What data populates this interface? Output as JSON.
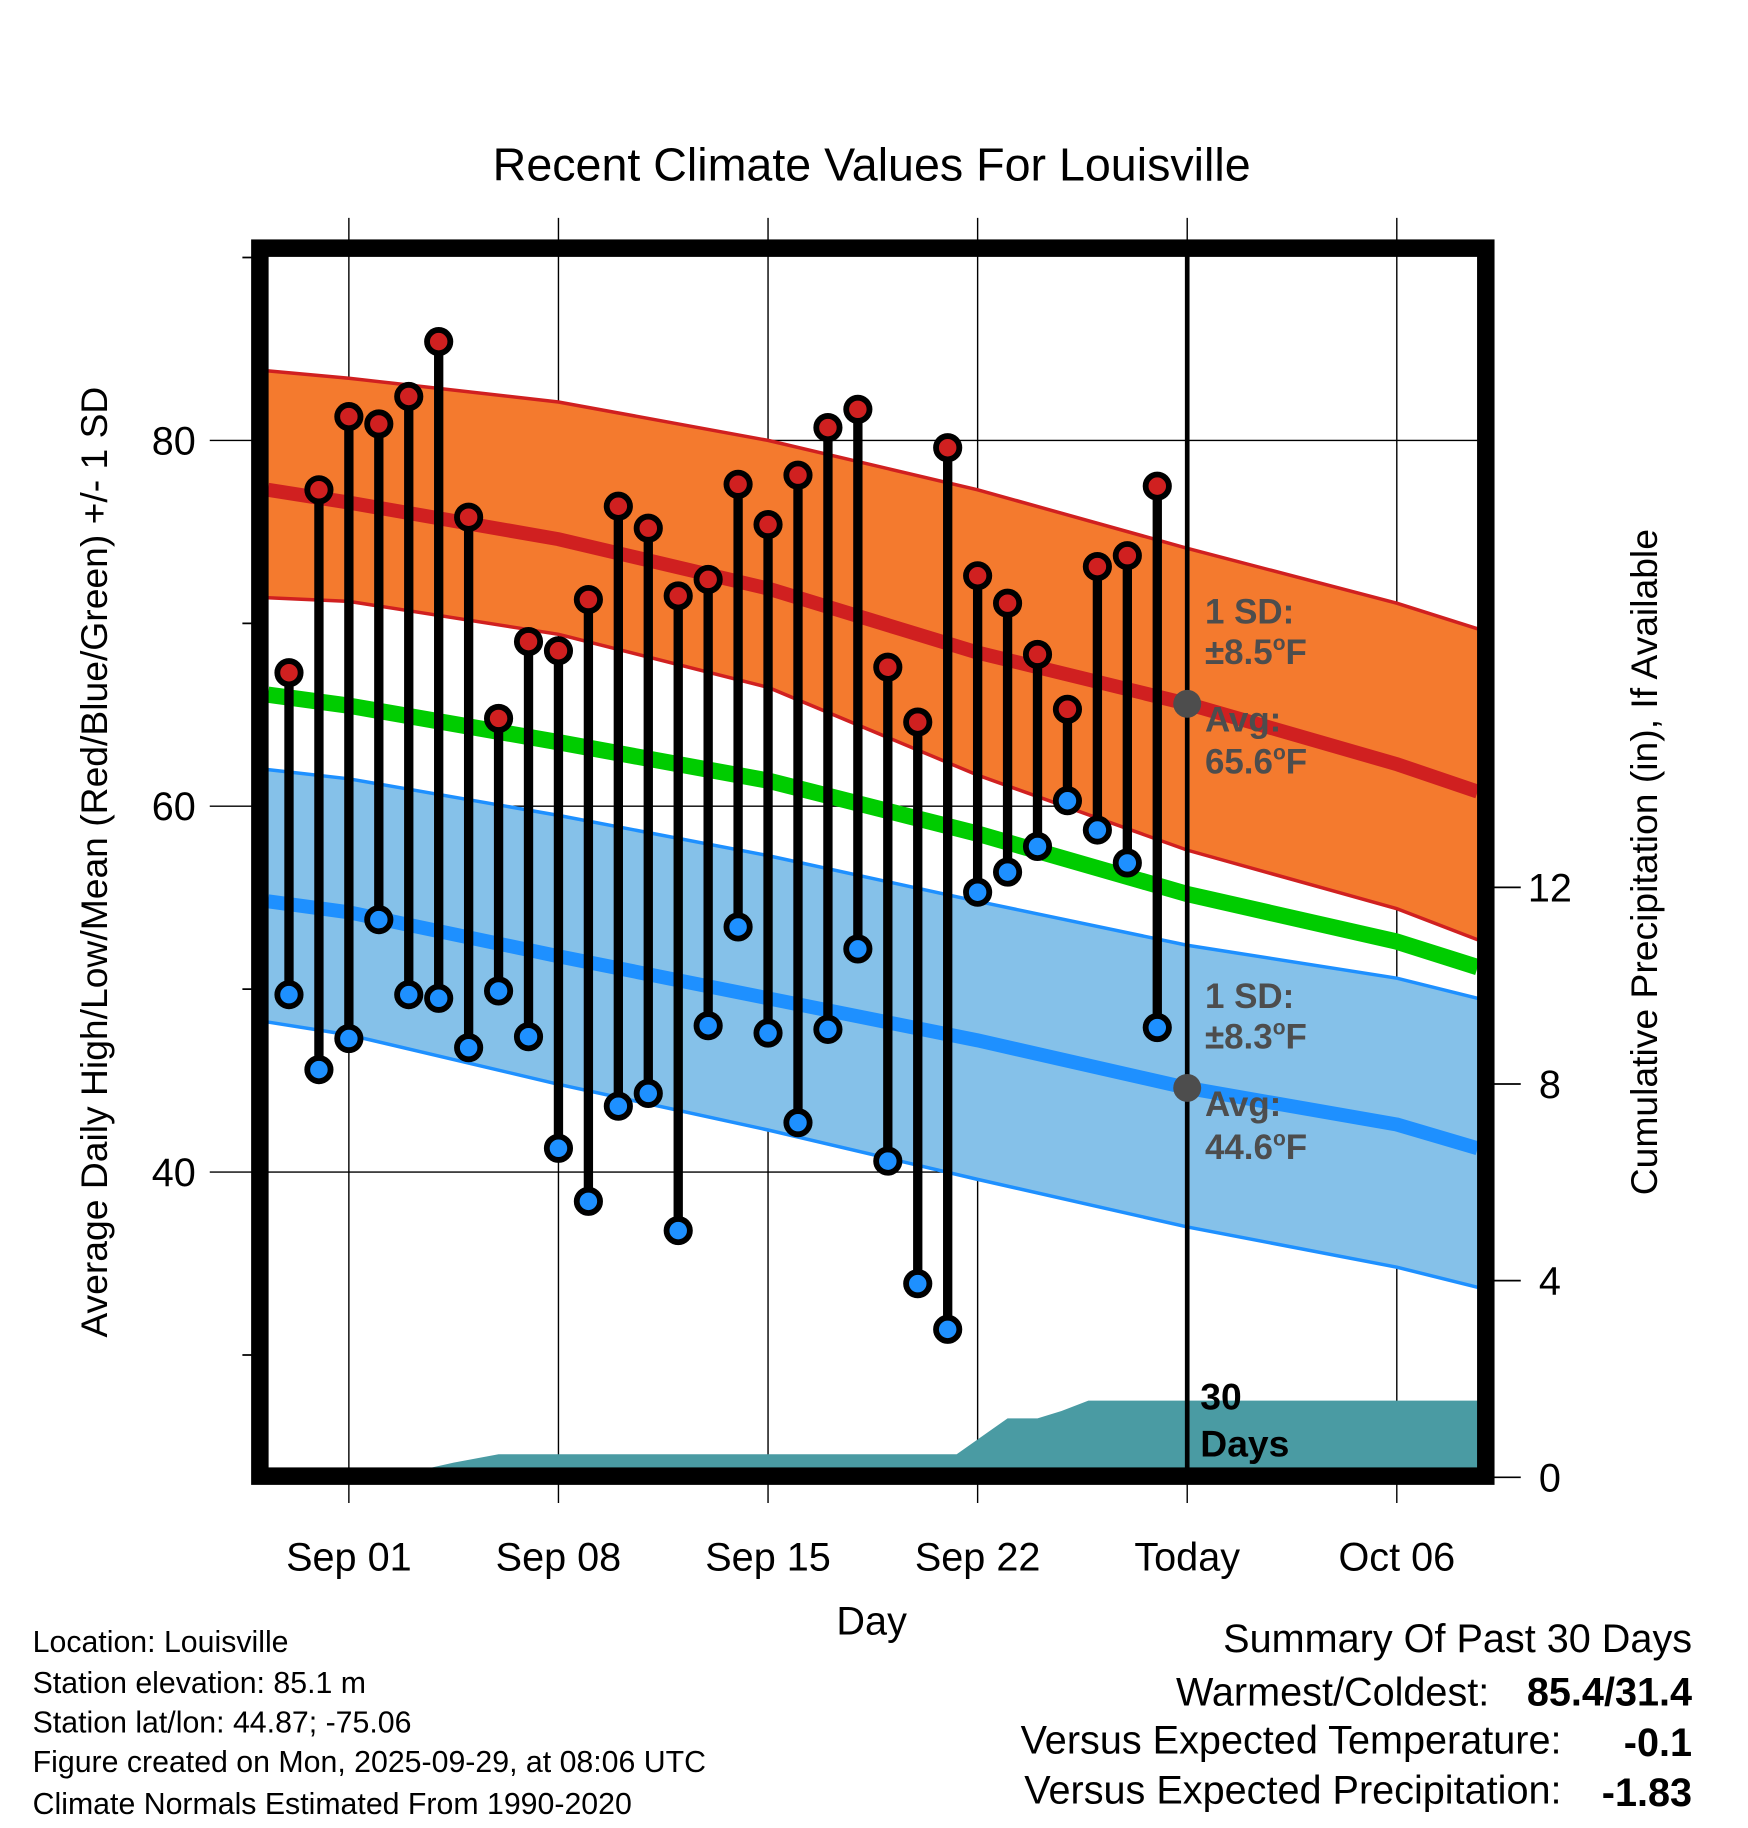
{
  "chart_data": {
    "type": "line",
    "title": "Recent Climate Values For Louisville",
    "xlabel": "Day",
    "ylabel": "Average Daily High/Low/Mean (Red/Blue/Green) +/- 1 SD",
    "y2label": "Cumulative Precipitation (in), If Available",
    "x_unit": "days relative to Sep 01",
    "xlim": [
      -2.7,
      37.7
    ],
    "ylim": [
      23.4,
      90.4
    ],
    "y2lim": [
      0,
      25
    ],
    "grid": true,
    "x_ticks": [
      {
        "x": 0,
        "label": "Sep 01"
      },
      {
        "x": 7,
        "label": "Sep 08"
      },
      {
        "x": 14,
        "label": "Sep 15"
      },
      {
        "x": 21,
        "label": "Sep 22"
      },
      {
        "x": 28,
        "label": "Today"
      },
      {
        "x": 35,
        "label": "Oct 06"
      }
    ],
    "y_ticks": [
      40,
      60,
      80
    ],
    "y_minor_ticks": [
      30,
      50,
      70,
      90
    ],
    "y2_ticks": [
      0,
      4,
      8,
      12
    ],
    "today_x": 28,
    "daily": {
      "x": [
        -2,
        -1,
        0,
        1,
        2,
        3,
        4,
        5,
        6,
        7,
        8,
        9,
        10,
        11,
        12,
        13,
        14,
        15,
        16,
        17,
        18,
        19,
        20,
        21,
        22,
        23,
        24,
        25,
        26,
        27
      ],
      "high": [
        67.3,
        77.3,
        81.3,
        80.9,
        82.4,
        85.4,
        75.8,
        64.8,
        69.0,
        68.5,
        71.3,
        76.4,
        75.2,
        71.5,
        72.4,
        77.6,
        75.4,
        78.1,
        80.7,
        81.7,
        67.6,
        64.6,
        79.6,
        72.6,
        71.1,
        68.3,
        65.3,
        73.1,
        73.7,
        77.5
      ],
      "low": [
        49.7,
        45.6,
        47.3,
        53.8,
        49.7,
        49.5,
        46.8,
        49.9,
        47.4,
        41.3,
        38.4,
        43.6,
        44.3,
        36.8,
        48.0,
        53.4,
        47.6,
        42.7,
        47.8,
        52.2,
        40.6,
        33.9,
        31.4,
        55.3,
        56.4,
        57.8,
        60.3,
        58.7,
        56.9,
        47.9
      ]
    },
    "normals": {
      "x": [
        -2.7,
        0,
        7,
        14,
        21,
        28,
        35,
        37.7
      ],
      "high_mean": [
        77.3,
        76.6,
        74.6,
        71.9,
        68.4,
        65.6,
        62.3,
        60.8
      ],
      "high_upper": [
        83.8,
        83.4,
        82.1,
        80.0,
        77.3,
        74.1,
        71.1,
        69.7
      ],
      "high_lower": [
        71.4,
        71.2,
        69.4,
        66.5,
        61.7,
        57.6,
        54.4,
        52.7
      ],
      "mean": [
        66.1,
        65.5,
        63.5,
        61.4,
        58.5,
        55.2,
        52.6,
        51.2
      ],
      "low_mean": [
        54.8,
        54.2,
        51.8,
        49.5,
        47.2,
        44.6,
        42.6,
        41.3
      ],
      "low_upper": [
        62.0,
        61.5,
        59.5,
        57.3,
        54.8,
        52.4,
        50.6,
        49.5
      ],
      "low_lower": [
        48.2,
        47.5,
        44.8,
        42.3,
        39.6,
        37.0,
        34.8,
        33.7
      ]
    },
    "precip": {
      "x": [
        -2.7,
        2.7,
        3.5,
        5,
        20.3,
        21.3,
        22,
        23,
        23.8,
        24.7,
        37.7
      ],
      "cumulative": [
        0,
        0,
        0.3,
        0.47,
        0.47,
        0.9,
        1.2,
        1.2,
        1.35,
        1.56,
        1.56
      ]
    },
    "annotations": {
      "high_sd_label": "1 SD:",
      "high_sd_value": "±8.5",
      "high_avg_label": "Avg:",
      "high_avg_value": "65.6",
      "low_sd_label": "1 SD:",
      "low_sd_value": "±8.3",
      "low_avg_label": "Avg:",
      "low_avg_value": "44.6",
      "high_avg": 65.6,
      "low_avg": 44.6,
      "deg_sup": "o",
      "unit": "F",
      "days_num": "30",
      "days_word": "Days"
    },
    "colors": {
      "high_band": "#f47a2e",
      "high_line": "#d02020",
      "mean_line": "#00cc00",
      "low_band": "#85c1e9",
      "low_line": "#1e90ff",
      "precip": "#4a9ba3",
      "high_dot": "#d02020",
      "low_dot": "#1e90ff"
    }
  },
  "info": {
    "location": "Location: Louisville",
    "elevation": "Station elevation: 85.1 m",
    "latlon": "Station lat/lon: 44.87; -75.06",
    "created": "Figure created on Mon, 2025-09-29, at 08:06 UTC",
    "normals": "Climate Normals Estimated From 1990-2020"
  },
  "summary": {
    "title": "Summary Of Past 30 Days",
    "warmest_label": "Warmest/Coldest:",
    "warmest_value": "85.4/31.4",
    "temp_label": "Versus Expected Temperature:",
    "temp_value": "-0.1",
    "temp_color": "#1e90ff",
    "precip_label": "Versus Expected Precipitation:",
    "precip_value": "-1.83",
    "precip_color": "#a0522d"
  }
}
